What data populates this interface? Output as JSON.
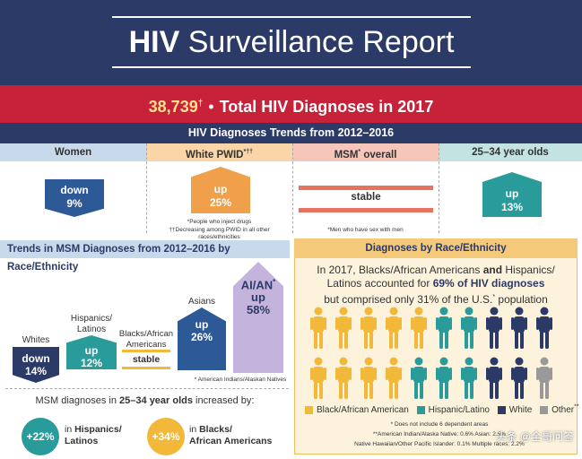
{
  "header": {
    "title_bold": "HIV",
    "title_rest": "Surveillance Report"
  },
  "banner": {
    "number": "38,739",
    "dagger": "†",
    "separator": "•",
    "label": "Total HIV Diagnoses in 2017"
  },
  "trends": {
    "heading": "HIV Diagnoses Trends from 2012–2016",
    "columns": [
      {
        "name": "Women",
        "value_line1": "down",
        "value_line2": "9%"
      },
      {
        "name": "White PWID",
        "name_sup": "*††",
        "value_line1": "up",
        "value_line2": "25%"
      },
      {
        "name": "MSM",
        "name_sup": "*",
        "name_suffix": " overall",
        "value_line1": "stable"
      },
      {
        "name": "25–34 year olds",
        "value_line1": "up",
        "value_line2": "13%"
      }
    ],
    "footnote_pwid": "*People who inject drugs",
    "footnote_pwid2": "††Decreasing among PWID in all other races/ethnicities",
    "footnote_msm": "*Men who have sex with men"
  },
  "msm_race": {
    "heading": "Trends in MSM Diagnoses from 2012–2016 by Race/Ethnicity",
    "bars": [
      {
        "label": "Whites",
        "line1": "down",
        "line2": "14%",
        "color": "#2b3a67"
      },
      {
        "label_l1": "Hispanics/",
        "label_l2": "Latinos",
        "line1": "up",
        "line2": "12%",
        "color": "#2a9b9b"
      },
      {
        "label_l1": "Blacks/African",
        "label_l2": "Americans",
        "line1": "stable",
        "color": "#f2b83a"
      },
      {
        "label": "Asians",
        "line1": "up",
        "line2": "26%",
        "color": "#2d5a96"
      },
      {
        "label_l1": "AI/AN",
        "label_sup": "*",
        "line1": "up",
        "line2": "58%",
        "color": "#c4b3dd"
      }
    ],
    "footnote": "* American Indians/Alaskan Natives"
  },
  "age_msm": {
    "intro_a": "MSM diagnoses in ",
    "intro_b": "25–34 year olds",
    "intro_c": " increased by:",
    "items": [
      {
        "value": "+22%",
        "pre": "in ",
        "bold1": "Hispanics/",
        "bold2": "Latinos",
        "color": "#2a9b9b"
      },
      {
        "value": "+34%",
        "pre": "in ",
        "bold1": "Blacks/",
        "bold2": "African Americans",
        "color": "#f2b83a"
      }
    ]
  },
  "race": {
    "heading": "Diagnoses by Race/Ethnicity",
    "text_1": "In 2017, Blacks/African Americans ",
    "text_and": "and",
    "text_2": " Hispanics/",
    "text_3": "Latinos accounted for ",
    "text_bold": "69% of HIV diagnoses",
    "text_4": "but comprised only 31% of the U.S.",
    "text_sup": "*",
    "text_5": " population",
    "legend": [
      {
        "label": "Black/African American",
        "color": "#f2b83a"
      },
      {
        "label": "Hispanic/Latino",
        "color": "#2a9b9b"
      },
      {
        "label": "White",
        "color": "#2b3a67"
      },
      {
        "label": "Other",
        "sup": "**",
        "color": "#999999"
      }
    ],
    "footnote1": "* Does not include 6 dependent areas",
    "footnote2": "**American Indian/Alaska Native: 0.6%  Asian: 2.5%",
    "footnote3": "Native Hawaiian/Other Pacific Islander: 0.1%  Multiple races: 2.2%",
    "watermark": "头条 @全哥问答"
  },
  "colors": {
    "navy": "#2b3a67",
    "red": "#c8213a",
    "teal": "#2a9b9b",
    "gold": "#f2b83a",
    "orange": "#f0a04b",
    "salmon": "#e7735e",
    "purple": "#c4b3dd"
  }
}
